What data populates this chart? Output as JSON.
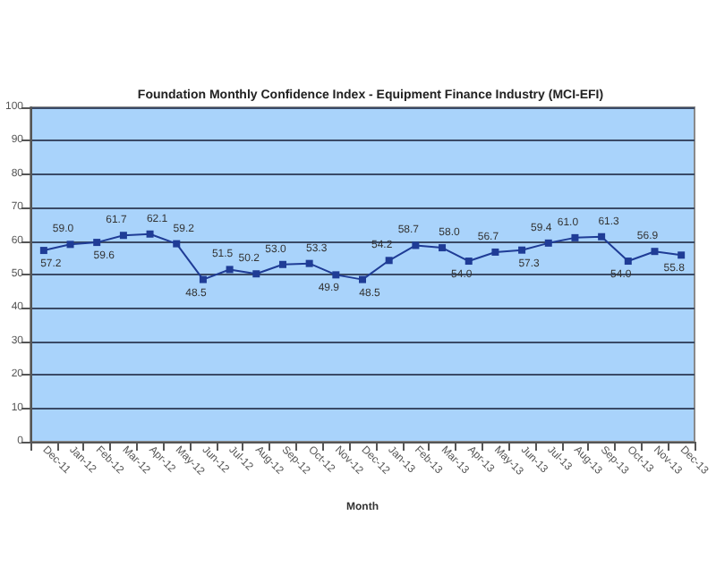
{
  "chart_data": {
    "type": "line",
    "title": "Foundation Monthly Confidence Index - Equipment Finance Industry (MCI-EFI)",
    "xlabel": "Month",
    "categories": [
      "Dec-11",
      "Jan-12",
      "Feb-12",
      "Mar-12",
      "Apr-12",
      "May-12",
      "Jun-12",
      "Jul-12",
      "Aug-12",
      "Sep-12",
      "Oct-12",
      "Nov-12",
      "Dec-12",
      "Jan-13",
      "Feb-13",
      "Mar-13",
      "Apr-13",
      "May-13",
      "Jun-13",
      "Jul-13",
      "Aug-13",
      "Sep-13",
      "Oct-13",
      "Nov-13",
      "Dec-13"
    ],
    "series": [
      {
        "color": "#1f3c96",
        "values": [
          57.2,
          59.0,
          59.6,
          61.7,
          62.1,
          59.2,
          48.5,
          51.5,
          50.2,
          53.0,
          53.3,
          49.9,
          48.5,
          54.2,
          58.7,
          58.0,
          54.0,
          56.7,
          57.3,
          59.4,
          61.0,
          61.3,
          54.0,
          56.9,
          55.8
        ],
        "value_labels": [
          "57.2",
          "59.0",
          "59.6",
          "61.7",
          "62.1",
          "59.2",
          "48.5",
          "51.5",
          "50.2",
          "53.0",
          "53.3",
          "49.9",
          "48.5",
          "54.2",
          "58.7",
          "58.0",
          "54.0",
          "56.7",
          "57.3",
          "59.4",
          "61.0",
          "61.3",
          "54.0",
          "56.9",
          "55.8"
        ]
      }
    ],
    "ylim": [
      0,
      100
    ],
    "yticks": [
      0,
      10,
      20,
      30,
      40,
      50,
      60,
      70,
      80,
      90,
      100
    ],
    "grid": "y",
    "marker": "square",
    "line_style": "solid"
  }
}
